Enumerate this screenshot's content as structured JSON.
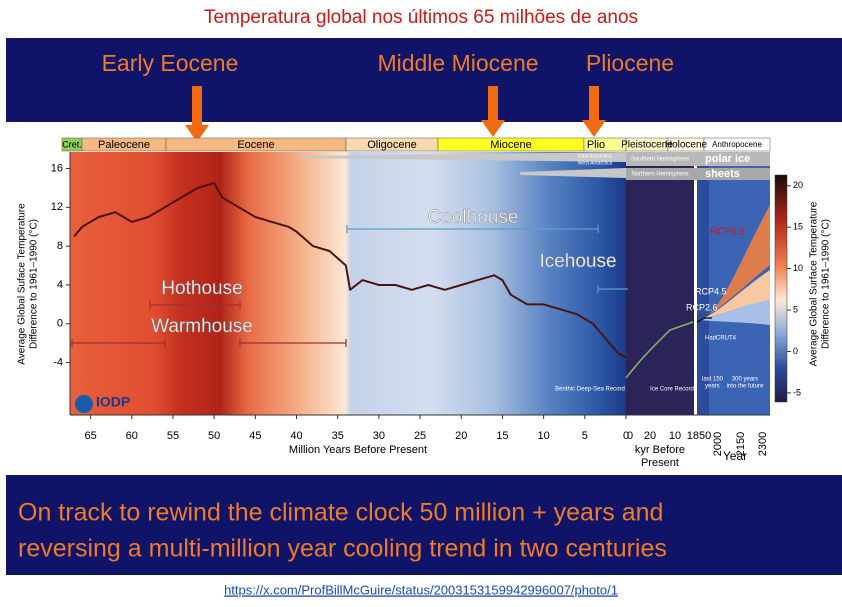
{
  "title": "Temperatura global nos últimos 65 milhões de anos",
  "periods": [
    "Early Eocene",
    "Middle Miocene",
    "Pliocene"
  ],
  "chart_data": {
    "type": "line",
    "epochs": [
      "Cret.",
      "Paleocene",
      "Eocene",
      "Oligocene",
      "Miocene",
      "Plio",
      "Pleistocene",
      "Holocene",
      "Anthropocene"
    ],
    "x": [
      67,
      66,
      64,
      62,
      60,
      58,
      56,
      54,
      52,
      50,
      49,
      47,
      45,
      43,
      41,
      40,
      38,
      36,
      34,
      33.5,
      32,
      30,
      28,
      26,
      24,
      22,
      20,
      18,
      16,
      15,
      14,
      12,
      10,
      8,
      6,
      5,
      4,
      3,
      2,
      1,
      0
    ],
    "values": [
      9,
      10,
      11,
      11.5,
      10.5,
      11,
      12,
      13,
      14,
      14.5,
      13,
      12,
      11,
      10.5,
      10,
      9.5,
      8,
      7.5,
      6,
      3.5,
      4.5,
      4,
      4,
      3.5,
      4,
      3.5,
      4,
      4.5,
      5,
      4.5,
      3,
      2,
      2,
      1.5,
      1,
      0.5,
      0,
      -1,
      -2,
      -3,
      -3.5
    ],
    "color": "#4a1410",
    "xlim": [
      67.5,
      0
    ],
    "xticks": [
      65,
      60,
      55,
      50,
      45,
      40,
      35,
      30,
      25,
      20,
      15,
      10,
      5,
      0
    ],
    "xlabel": "Million Years Before Present",
    "ylim": [
      -9.4,
      17.7
    ],
    "yticks": [
      -4,
      0,
      4,
      8,
      12,
      16
    ],
    "ylabel": [
      "Average Global Suface Temperature",
      "Difference to 1961–1990 (°C)"
    ],
    "annotations": {
      "hothouse": "Hothouse",
      "warmhouse": "Warmhouse",
      "coolhouse": "Coolhouse",
      "icehouse": "Icehouse",
      "east_antarctica": "East Antarctica",
      "west_antarctica": "West Antarctica",
      "southern": "Southern Hemisphere",
      "northern": "Northern Hemisphere",
      "polar_ice": "polar ice",
      "sheets": "sheets",
      "benthic": "Benthic Deep-Sea Record",
      "ice_core": "Ice Core Record",
      "iodp": "IODP"
    },
    "recent": {
      "kyr_ticks": [
        "0",
        "20",
        "10"
      ],
      "kyr_label": [
        "kyr Before",
        "Present"
      ],
      "year_ticks": [
        "1850",
        "2000",
        "2150",
        "2300"
      ],
      "year_label": "Year",
      "rcp85": "RCP8.5",
      "rcp45": "RCP4.5",
      "rcp26": "RCP2.6",
      "hadcrut": "HadCRUT4",
      "last150": [
        "last 150",
        "years"
      ],
      "future": [
        "300 years",
        "into the future"
      ]
    },
    "colorbar": {
      "label": [
        "Average Global Surface Temperature",
        "Difference to 1961–1990 (°C)"
      ],
      "lim": [
        -6.1,
        21.3
      ],
      "ticks": [
        20,
        15,
        10,
        5,
        0,
        -5
      ]
    }
  },
  "footer": [
    "On track to rewind the climate clock 50 million + years and",
    "reversing a multi-million year cooling trend in two centuries"
  ],
  "link": "https://x.com/ProfBillMcGuire/status/2003153159942996007/photo/1"
}
